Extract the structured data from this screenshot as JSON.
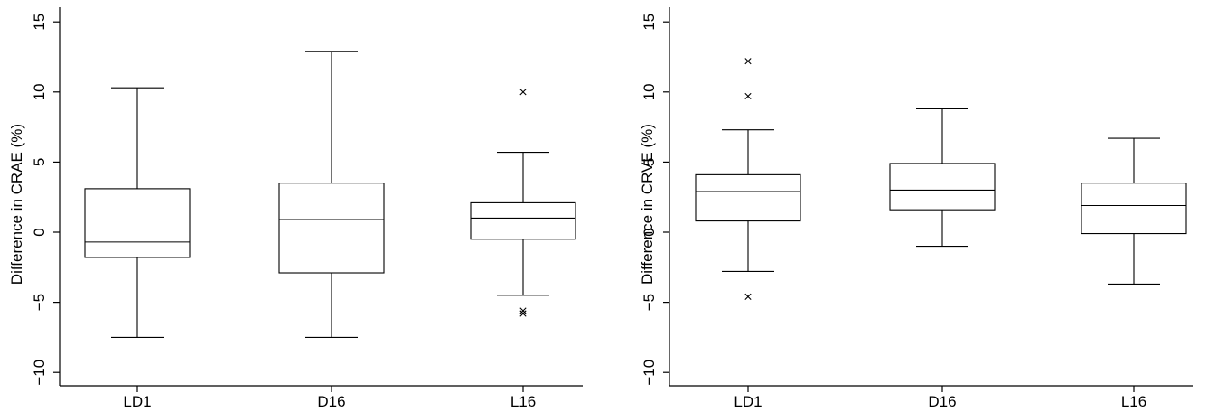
{
  "chart_data": [
    {
      "type": "box",
      "ylabel": "Difference in CRAE (%)",
      "xlabel": "",
      "ylim": [
        -11,
        15.5
      ],
      "yticks": [
        15,
        10,
        5,
        0,
        -5,
        -10
      ],
      "ytick_labels": [
        "15",
        "10",
        "5",
        "0",
        "−5",
        "−10"
      ],
      "categories": [
        "LD1",
        "D16",
        "L16"
      ],
      "boxes": [
        {
          "category": "LD1",
          "min": -7.5,
          "q1": -1.8,
          "median": -0.7,
          "q3": 3.1,
          "max": 10.3,
          "outliers": []
        },
        {
          "category": "D16",
          "min": -7.5,
          "q1": -2.9,
          "median": 0.9,
          "q3": 3.5,
          "max": 12.9,
          "outliers": []
        },
        {
          "category": "L16",
          "min": -4.5,
          "q1": -0.5,
          "median": 1.0,
          "q3": 2.1,
          "max": 5.7,
          "outliers": [
            10.0,
            -5.6,
            -5.8
          ]
        }
      ]
    },
    {
      "type": "box",
      "ylabel": "Difference in CRVE (%)",
      "xlabel": "",
      "ylim": [
        -11,
        15.5
      ],
      "yticks": [
        15,
        10,
        5,
        0,
        -5,
        -10
      ],
      "ytick_labels": [
        "15",
        "10",
        "5",
        "0",
        "−5",
        "−10"
      ],
      "categories": [
        "LD1",
        "D16",
        "L16"
      ],
      "boxes": [
        {
          "category": "LD1",
          "min": -2.8,
          "q1": 0.8,
          "median": 2.9,
          "q3": 4.1,
          "max": 7.3,
          "outliers": [
            12.2,
            9.7,
            -4.6
          ]
        },
        {
          "category": "D16",
          "min": -1.0,
          "q1": 1.6,
          "median": 3.0,
          "q3": 4.9,
          "max": 8.8,
          "outliers": []
        },
        {
          "category": "L16",
          "min": -3.7,
          "q1": -0.1,
          "median": 1.9,
          "q3": 3.5,
          "max": 6.7,
          "outliers": []
        }
      ]
    }
  ]
}
